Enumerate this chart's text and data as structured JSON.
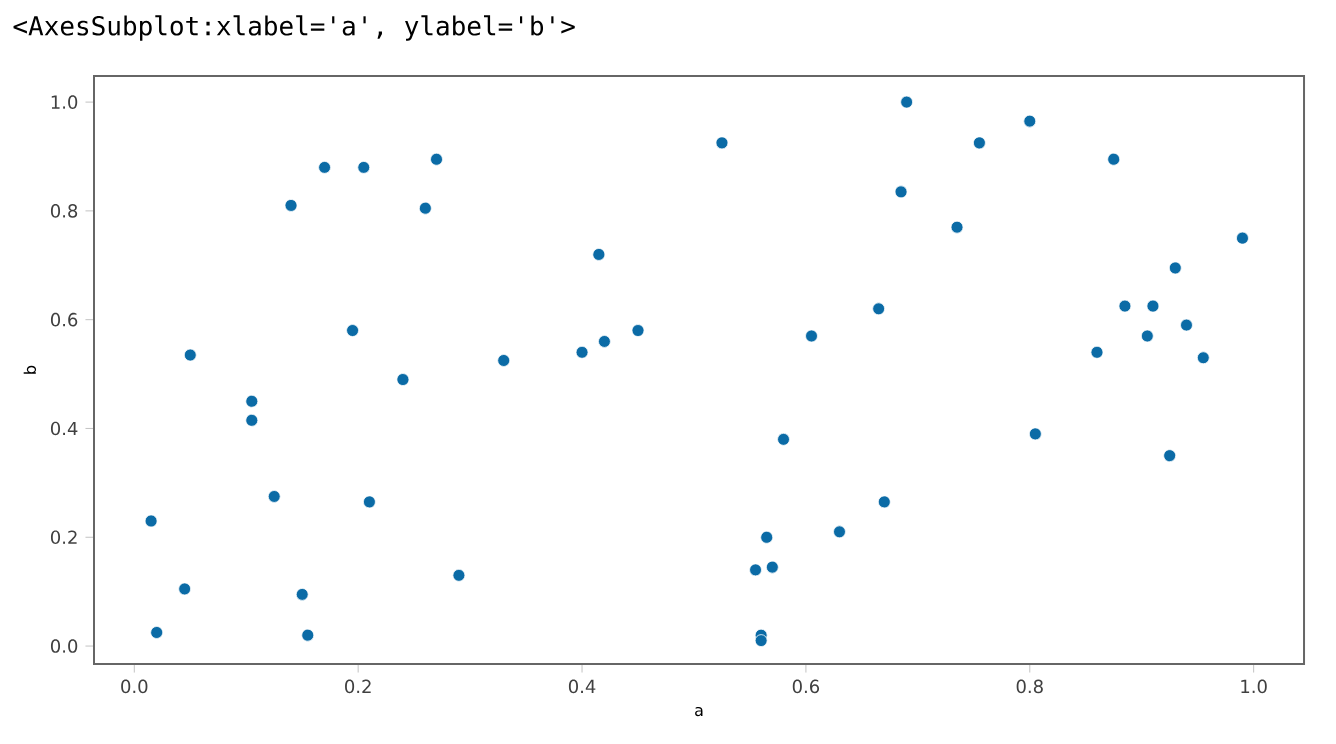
{
  "chart_data": {
    "type": "scatter",
    "xlabel": "a",
    "ylabel": "b",
    "annotations": [
      "<AxesSubplot:xlabel='a', ylabel='b'>"
    ],
    "x": [
      0.015,
      0.02,
      0.045,
      0.05,
      0.105,
      0.105,
      0.125,
      0.14,
      0.15,
      0.155,
      0.17,
      0.195,
      0.205,
      0.21,
      0.24,
      0.26,
      0.27,
      0.29,
      0.33,
      0.4,
      0.415,
      0.42,
      0.45,
      0.525,
      0.555,
      0.56,
      0.56,
      0.565,
      0.57,
      0.58,
      0.605,
      0.63,
      0.665,
      0.67,
      0.685,
      0.69,
      0.735,
      0.755,
      0.8,
      0.805,
      0.86,
      0.875,
      0.885,
      0.905,
      0.91,
      0.925,
      0.93,
      0.94,
      0.955,
      0.99
    ],
    "values": [
      0.23,
      0.025,
      0.105,
      0.535,
      0.45,
      0.415,
      0.275,
      0.81,
      0.095,
      0.02,
      0.88,
      0.58,
      0.88,
      0.265,
      0.49,
      0.805,
      0.895,
      0.13,
      0.525,
      0.54,
      0.72,
      0.56,
      0.58,
      0.925,
      0.14,
      0.02,
      0.01,
      0.2,
      0.145,
      0.38,
      0.57,
      0.21,
      0.62,
      0.265,
      0.835,
      1.0,
      0.77,
      0.925,
      0.965,
      0.39,
      0.54,
      0.895,
      0.625,
      0.57,
      0.625,
      0.35,
      0.695,
      0.59,
      0.53,
      0.75
    ],
    "color": "#0b6ba6",
    "marker": "circle",
    "xlim": [
      -0.036,
      1.045
    ],
    "ylim": [
      -0.033,
      1.048
    ],
    "xticks": [
      {
        "value": 0,
        "label": "0.0"
      },
      0.2,
      0.4,
      0.6,
      0.8,
      {
        "value": 1,
        "label": "1.0"
      }
    ],
    "yticks": [
      {
        "value": 0,
        "label": "0.0"
      },
      0.2,
      0.4,
      0.6,
      0.8,
      {
        "value": 1,
        "label": "1.0"
      }
    ]
  }
}
